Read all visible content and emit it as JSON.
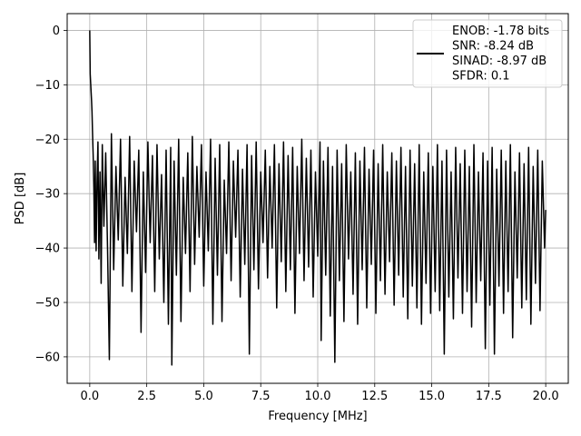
{
  "chart_data": {
    "type": "line",
    "title": "",
    "xlabel": "Frequency [MHz]",
    "ylabel": "PSD [dB]",
    "xlim": [
      -0.99,
      20.99
    ],
    "ylim": [
      -64.86,
      3.08
    ],
    "grid": true,
    "xticks": [
      0.0,
      2.5,
      5.0,
      7.5,
      10.0,
      12.5,
      15.0,
      17.5,
      20.0
    ],
    "xtick_labels": [
      "0.0",
      "2.5",
      "5.0",
      "7.5",
      "10.0",
      "12.5",
      "15.0",
      "17.5",
      "20.0"
    ],
    "yticks": [
      0,
      -10,
      -20,
      -30,
      -40,
      -50,
      -60
    ],
    "ytick_labels": [
      "0",
      "−10",
      "−20",
      "−30",
      "−40",
      "−50",
      "−60"
    ],
    "legend": {
      "position": "top-right",
      "entries": [
        "ENOB: -1.78 bits",
        "SNR: -8.24 dB",
        "SINAD: -8.97 dB",
        "SFDR: 0.1"
      ]
    },
    "series": [
      {
        "color": "#000000",
        "points": [
          [
            0.0,
            0.0
          ],
          [
            0.02,
            -8.0
          ],
          [
            0.05,
            -10.5
          ],
          [
            0.08,
            -13.0
          ],
          [
            0.1,
            -15.0
          ],
          [
            0.12,
            -18.5
          ],
          [
            0.15,
            -23.0
          ],
          [
            0.18,
            -29.0
          ],
          [
            0.21,
            -39.0
          ],
          [
            0.24,
            -24.0
          ],
          [
            0.28,
            -40.5
          ],
          [
            0.32,
            -28.0
          ],
          [
            0.36,
            -20.5
          ],
          [
            0.4,
            -42.0
          ],
          [
            0.45,
            -26.0
          ],
          [
            0.5,
            -46.5
          ],
          [
            0.55,
            -21.0
          ],
          [
            0.62,
            -36.0
          ],
          [
            0.7,
            -22.5
          ],
          [
            0.78,
            -40.0
          ],
          [
            0.86,
            -60.5
          ],
          [
            0.95,
            -19.0
          ],
          [
            1.05,
            -44.0
          ],
          [
            1.15,
            -25.0
          ],
          [
            1.25,
            -38.5
          ],
          [
            1.35,
            -20.0
          ],
          [
            1.45,
            -47.0
          ],
          [
            1.55,
            -27.0
          ],
          [
            1.65,
            -41.0
          ],
          [
            1.75,
            -19.5
          ],
          [
            1.85,
            -48.0
          ],
          [
            1.95,
            -24.0
          ],
          [
            2.05,
            -37.0
          ],
          [
            2.15,
            -22.0
          ],
          [
            2.25,
            -55.5
          ],
          [
            2.35,
            -26.0
          ],
          [
            2.45,
            -44.5
          ],
          [
            2.55,
            -20.5
          ],
          [
            2.65,
            -39.0
          ],
          [
            2.75,
            -23.0
          ],
          [
            2.85,
            -48.0
          ],
          [
            2.95,
            -21.0
          ],
          [
            3.05,
            -42.0
          ],
          [
            3.15,
            -26.5
          ],
          [
            3.25,
            -50.0
          ],
          [
            3.35,
            -22.0
          ],
          [
            3.45,
            -54.0
          ],
          [
            3.55,
            -21.5
          ],
          [
            3.6,
            -61.5
          ],
          [
            3.7,
            -24.0
          ],
          [
            3.8,
            -45.0
          ],
          [
            3.9,
            -20.0
          ],
          [
            4.0,
            -53.5
          ],
          [
            4.1,
            -27.0
          ],
          [
            4.2,
            -41.0
          ],
          [
            4.3,
            -22.5
          ],
          [
            4.4,
            -48.0
          ],
          [
            4.5,
            -19.5
          ],
          [
            4.6,
            -43.0
          ],
          [
            4.7,
            -25.0
          ],
          [
            4.8,
            -38.0
          ],
          [
            4.9,
            -21.0
          ],
          [
            5.0,
            -47.0
          ],
          [
            5.1,
            -26.0
          ],
          [
            5.2,
            -40.5
          ],
          [
            5.3,
            -20.0
          ],
          [
            5.4,
            -54.0
          ],
          [
            5.5,
            -23.5
          ],
          [
            5.6,
            -45.0
          ],
          [
            5.7,
            -21.0
          ],
          [
            5.8,
            -53.5
          ],
          [
            5.9,
            -27.5
          ],
          [
            6.0,
            -41.0
          ],
          [
            6.1,
            -20.5
          ],
          [
            6.2,
            -46.0
          ],
          [
            6.3,
            -24.0
          ],
          [
            6.4,
            -38.0
          ],
          [
            6.5,
            -22.0
          ],
          [
            6.6,
            -49.0
          ],
          [
            6.7,
            -25.5
          ],
          [
            6.8,
            -43.0
          ],
          [
            6.9,
            -21.0
          ],
          [
            7.0,
            -59.5
          ],
          [
            7.1,
            -23.0
          ],
          [
            7.2,
            -44.0
          ],
          [
            7.3,
            -20.5
          ],
          [
            7.4,
            -47.5
          ],
          [
            7.5,
            -26.0
          ],
          [
            7.6,
            -39.0
          ],
          [
            7.7,
            -22.0
          ],
          [
            7.8,
            -45.5
          ],
          [
            7.9,
            -25.0
          ],
          [
            8.0,
            -40.0
          ],
          [
            8.1,
            -21.0
          ],
          [
            8.2,
            -51.0
          ],
          [
            8.3,
            -24.5
          ],
          [
            8.4,
            -42.5
          ],
          [
            8.5,
            -20.5
          ],
          [
            8.6,
            -48.0
          ],
          [
            8.7,
            -23.0
          ],
          [
            8.8,
            -44.0
          ],
          [
            8.9,
            -21.5
          ],
          [
            9.0,
            -52.0
          ],
          [
            9.1,
            -25.0
          ],
          [
            9.2,
            -41.0
          ],
          [
            9.3,
            -20.0
          ],
          [
            9.4,
            -46.0
          ],
          [
            9.5,
            -23.5
          ],
          [
            9.6,
            -43.5
          ],
          [
            9.7,
            -22.0
          ],
          [
            9.8,
            -49.0
          ],
          [
            9.9,
            -26.0
          ],
          [
            10.0,
            -41.5
          ],
          [
            10.1,
            -20.5
          ],
          [
            10.15,
            -57.0
          ],
          [
            10.25,
            -24.0
          ],
          [
            10.35,
            -45.0
          ],
          [
            10.45,
            -21.5
          ],
          [
            10.55,
            -52.5
          ],
          [
            10.65,
            -25.0
          ],
          [
            10.75,
            -61.0
          ],
          [
            10.85,
            -22.0
          ],
          [
            10.95,
            -46.0
          ],
          [
            11.05,
            -24.5
          ],
          [
            11.15,
            -53.5
          ],
          [
            11.25,
            -21.0
          ],
          [
            11.35,
            -42.0
          ],
          [
            11.45,
            -26.0
          ],
          [
            11.55,
            -48.5
          ],
          [
            11.65,
            -22.5
          ],
          [
            11.75,
            -54.0
          ],
          [
            11.85,
            -24.0
          ],
          [
            11.95,
            -44.0
          ],
          [
            12.05,
            -21.5
          ],
          [
            12.15,
            -51.0
          ],
          [
            12.25,
            -25.5
          ],
          [
            12.35,
            -43.0
          ],
          [
            12.45,
            -22.0
          ],
          [
            12.55,
            -52.0
          ],
          [
            12.65,
            -24.5
          ],
          [
            12.75,
            -46.0
          ],
          [
            12.85,
            -21.0
          ],
          [
            12.95,
            -48.5
          ],
          [
            13.05,
            -26.0
          ],
          [
            13.15,
            -42.5
          ],
          [
            13.25,
            -22.5
          ],
          [
            13.35,
            -50.5
          ],
          [
            13.45,
            -24.0
          ],
          [
            13.55,
            -45.0
          ],
          [
            13.65,
            -21.5
          ],
          [
            13.75,
            -49.0
          ],
          [
            13.85,
            -25.0
          ],
          [
            13.95,
            -53.0
          ],
          [
            14.05,
            -22.0
          ],
          [
            14.15,
            -47.0
          ],
          [
            14.25,
            -24.5
          ],
          [
            14.35,
            -51.0
          ],
          [
            14.45,
            -21.0
          ],
          [
            14.55,
            -54.0
          ],
          [
            14.65,
            -26.0
          ],
          [
            14.75,
            -46.5
          ],
          [
            14.85,
            -22.5
          ],
          [
            14.95,
            -52.0
          ],
          [
            15.05,
            -25.0
          ],
          [
            15.15,
            -48.0
          ],
          [
            15.25,
            -21.0
          ],
          [
            15.35,
            -51.5
          ],
          [
            15.45,
            -24.0
          ],
          [
            15.55,
            -59.5
          ],
          [
            15.65,
            -22.0
          ],
          [
            15.75,
            -49.0
          ],
          [
            15.85,
            -26.0
          ],
          [
            15.95,
            -53.0
          ],
          [
            16.05,
            -21.5
          ],
          [
            16.15,
            -45.5
          ],
          [
            16.25,
            -24.5
          ],
          [
            16.35,
            -52.0
          ],
          [
            16.45,
            -22.0
          ],
          [
            16.55,
            -48.0
          ],
          [
            16.65,
            -25.0
          ],
          [
            16.75,
            -54.5
          ],
          [
            16.85,
            -21.0
          ],
          [
            16.95,
            -50.0
          ],
          [
            17.05,
            -26.0
          ],
          [
            17.15,
            -46.0
          ],
          [
            17.25,
            -22.5
          ],
          [
            17.35,
            -58.5
          ],
          [
            17.45,
            -24.0
          ],
          [
            17.55,
            -50.5
          ],
          [
            17.65,
            -21.5
          ],
          [
            17.75,
            -59.5
          ],
          [
            17.85,
            -25.5
          ],
          [
            17.95,
            -47.0
          ],
          [
            18.05,
            -22.0
          ],
          [
            18.15,
            -52.0
          ],
          [
            18.25,
            -24.0
          ],
          [
            18.35,
            -48.0
          ],
          [
            18.45,
            -21.0
          ],
          [
            18.55,
            -56.5
          ],
          [
            18.65,
            -26.0
          ],
          [
            18.75,
            -45.5
          ],
          [
            18.85,
            -22.5
          ],
          [
            18.95,
            -51.0
          ],
          [
            19.05,
            -24.5
          ],
          [
            19.15,
            -49.5
          ],
          [
            19.25,
            -21.5
          ],
          [
            19.35,
            -54.0
          ],
          [
            19.45,
            -25.0
          ],
          [
            19.55,
            -46.5
          ],
          [
            19.65,
            -22.0
          ],
          [
            19.75,
            -51.5
          ],
          [
            19.85,
            -24.0
          ],
          [
            19.95,
            -40.0
          ],
          [
            20.0,
            -33.0
          ]
        ]
      }
    ]
  }
}
